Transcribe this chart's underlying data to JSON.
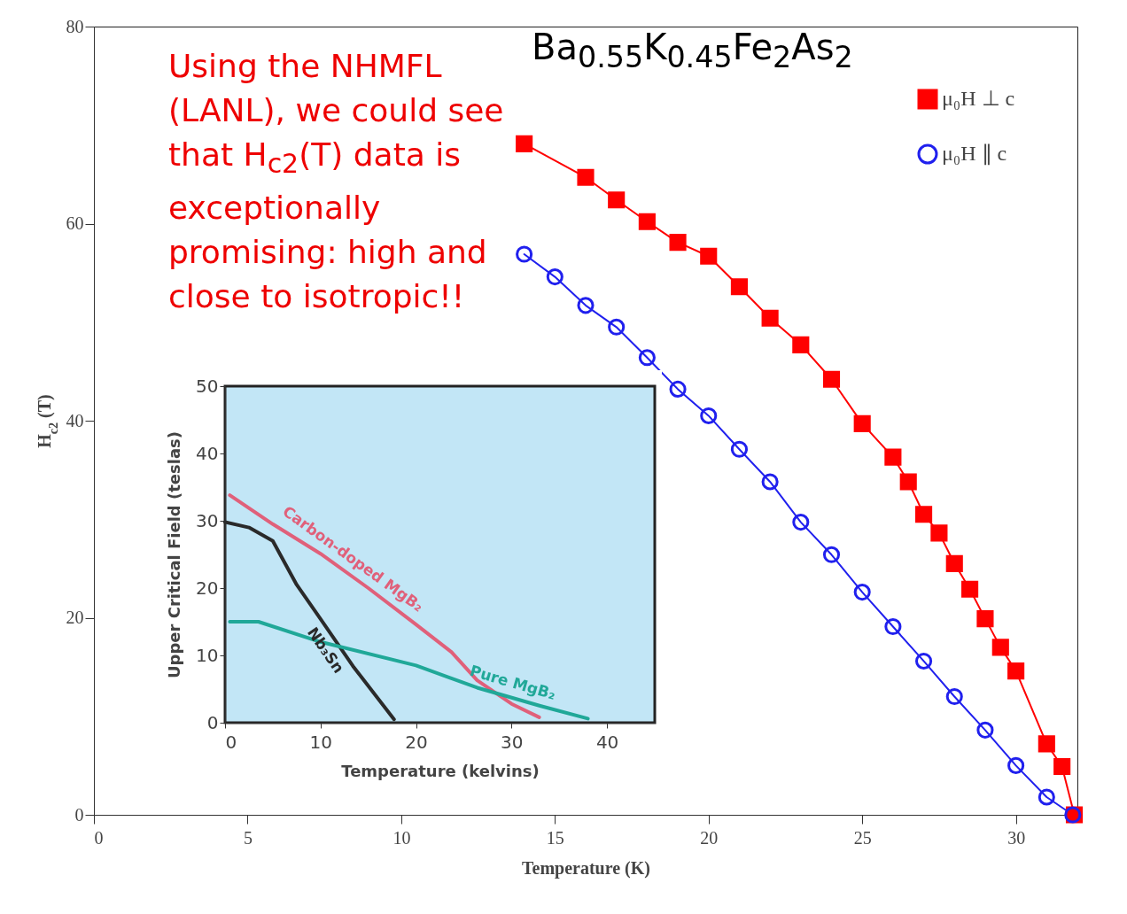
{
  "chart_data": [
    {
      "type": "line",
      "title": "Ba$_{0.55}$K$_{0.45}$Fe$_{2}$As$_{2}$",
      "xlabel": "Temperature (K)",
      "ylabel": "H$_{c2}$ (T)",
      "annotations": [
        "Using the NHMFL (LANL), we could see that H$_{c2}$(T) data is exceptionally promising:  high and close to isotropic!!"
      ],
      "xlim": [
        0,
        32
      ],
      "xticks": [
        0,
        5,
        10,
        15,
        20,
        25,
        30
      ],
      "ylim": [
        0,
        80
      ],
      "yticks": [
        0,
        20,
        40,
        60,
        80
      ],
      "grid": false,
      "legend": "top right",
      "line_style": "solid",
      "series": [
        {
          "name": "μ₀H ⊥ c",
          "color": "#ff0000",
          "marker": "square",
          "x": [
            14,
            16,
            17,
            18,
            19,
            20,
            21,
            22,
            23,
            24,
            25,
            26,
            26.5,
            27,
            27.5,
            28,
            28.5,
            29,
            29.5,
            30,
            31,
            31.5,
            31.9
          ],
          "values": [
            68.1,
            64.7,
            62.4,
            60.2,
            58.1,
            56.7,
            53.6,
            50.4,
            47.7,
            44.2,
            39.7,
            36.3,
            33.8,
            30.5,
            28.6,
            25.5,
            22.9,
            19.9,
            17.0,
            14.6,
            7.2,
            4.9,
            0
          ]
        },
        {
          "name": "μ₀H ∥ c",
          "color": "#2020ee",
          "marker": "circle",
          "x": [
            14,
            15,
            16,
            17,
            18,
            19,
            20,
            21,
            22,
            23,
            24,
            25,
            26,
            27,
            28,
            29,
            30,
            31,
            31.85
          ],
          "values": [
            56.9,
            54.6,
            51.7,
            49.5,
            46.4,
            43.2,
            40.5,
            37.1,
            33.8,
            29.7,
            26.4,
            22.6,
            19.1,
            15.6,
            12.0,
            8.6,
            5.0,
            1.8,
            0
          ]
        }
      ]
    },
    {
      "type": "line",
      "xlabel": "Temperature (kelvins)",
      "ylabel": "Upper Critical Field (teslas)",
      "xlim": [
        0,
        45
      ],
      "xticks": [
        0,
        10,
        20,
        30,
        40
      ],
      "ylim": [
        0,
        50
      ],
      "yticks": [
        0,
        10,
        20,
        30,
        40,
        50
      ],
      "grid": false,
      "legend": false,
      "line_style": "solid",
      "series": [
        {
          "name": "Carbon-doped MgB₂",
          "color": "#e0607a",
          "x": [
            0.5,
            5,
            10,
            15,
            20,
            23.7,
            26.4,
            30,
            32.9
          ],
          "values": [
            33.8,
            29.5,
            25.1,
            20,
            14.6,
            10.5,
            6.3,
            2.8,
            0.8
          ]
        },
        {
          "name": "Nb₃Sn",
          "color": "#2a2a2a",
          "x": [
            0,
            2.5,
            5,
            7.5,
            10,
            13.4,
            17.7
          ],
          "values": [
            29.8,
            29,
            27,
            20.5,
            15.4,
            8.4,
            0.5
          ]
        },
        {
          "name": "Pure MgB₂",
          "color": "#20a898",
          "x": [
            0.5,
            3.5,
            10,
            20,
            26.4,
            33,
            38
          ],
          "values": [
            15,
            15,
            12,
            8.5,
            5.2,
            2.5,
            0.6
          ]
        }
      ]
    }
  ]
}
